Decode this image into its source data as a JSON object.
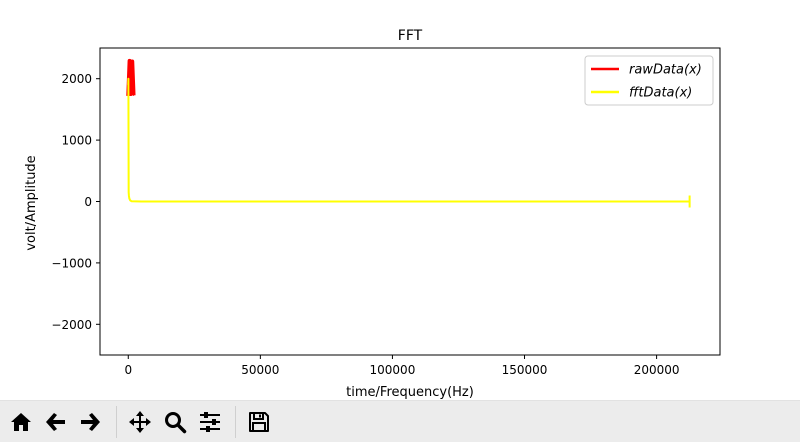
{
  "chart_data": {
    "type": "line",
    "title": "FFT",
    "xlabel": "time/Frequency(Hz)",
    "ylabel": "volt/Amplitude",
    "xlim": [
      -10700,
      224000
    ],
    "ylim": [
      -2500,
      2500
    ],
    "xticks": [
      0,
      50000,
      100000,
      150000,
      200000
    ],
    "xtick_labels": [
      "0",
      "50000",
      "100000",
      "150000",
      "200000"
    ],
    "yticks": [
      -2000,
      -1000,
      0,
      1000,
      2000
    ],
    "ytick_labels": [
      "−2000",
      "−1000",
      "0",
      "1000",
      "2000"
    ],
    "grid": false,
    "legend_position": "upper-right",
    "series": [
      {
        "name": "rawData(x)",
        "legend_label": "rawData(x)",
        "color": "#ff0000",
        "x": [
          0,
          500,
          1000,
          1500,
          2000
        ],
        "y": [
          1720,
          2290,
          1750,
          2280,
          1730
        ]
      },
      {
        "name": "fftData(x)",
        "legend_label": "fftData(x)",
        "color": "#ffff00",
        "x": [
          0,
          50,
          150,
          250,
          400,
          700,
          1200,
          5000,
          50000,
          100000,
          150000,
          200000,
          212500
        ],
        "y": [
          1900,
          2000,
          150,
          90,
          50,
          20,
          5,
          0,
          0,
          0,
          0,
          0,
          0
        ]
      }
    ]
  },
  "toolbar": {
    "buttons": [
      {
        "name": "home",
        "icon": "home-icon"
      },
      {
        "name": "back",
        "icon": "arrow-left-icon"
      },
      {
        "name": "forward",
        "icon": "arrow-right-icon"
      },
      {
        "name": "pan",
        "icon": "move-icon"
      },
      {
        "name": "zoom",
        "icon": "magnifier-icon"
      },
      {
        "name": "configure",
        "icon": "sliders-icon"
      },
      {
        "name": "save",
        "icon": "floppy-disk-icon"
      }
    ]
  }
}
